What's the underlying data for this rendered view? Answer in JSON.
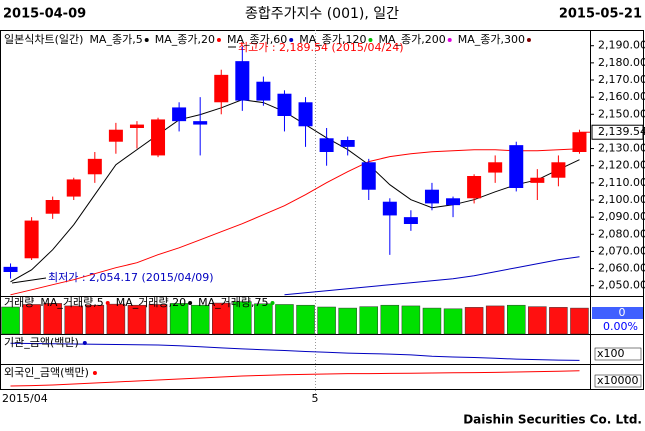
{
  "header": {
    "start_date": "2015-04-09",
    "title": "종합주가지수 (001), 일간",
    "end_date": "2015-05-21"
  },
  "footer": "Daishin Securities Co. Ltd.",
  "x_labels": [
    "2015/04",
    "5"
  ],
  "chart_data": [
    {
      "type": "candlestick",
      "legend_title": "일본식차트(일간)",
      "up_color": "#ff0000",
      "down_color": "#0000ff",
      "open": [
        2061,
        2066,
        2092,
        2102,
        2115,
        2134,
        2142,
        2126,
        2154,
        2146,
        2157,
        2181,
        2169,
        2162,
        2157,
        2136,
        2135,
        2122,
        2099,
        2090,
        2106,
        2101,
        2101,
        2116,
        2132,
        2110,
        2113,
        2128
      ],
      "high": [
        2063,
        2090,
        2102,
        2113,
        2128,
        2145,
        2146,
        2148,
        2157,
        2160,
        2176,
        2189.54,
        2172,
        2164,
        2160,
        2142,
        2137,
        2124,
        2101,
        2094,
        2110,
        2102,
        2115,
        2126,
        2134,
        2118,
        2126,
        2141
      ],
      "low": [
        2054.17,
        2065,
        2089,
        2100,
        2110,
        2127,
        2130,
        2125,
        2140,
        2126,
        2150,
        2152,
        2155,
        2140,
        2131,
        2120,
        2126,
        2100,
        2068,
        2082,
        2094,
        2090,
        2098,
        2110,
        2105,
        2100,
        2108,
        2127
      ],
      "close": [
        2058,
        2088,
        2100,
        2112,
        2124,
        2141,
        2144,
        2147,
        2146,
        2144,
        2173,
        2158,
        2158,
        2149,
        2143,
        2128,
        2131,
        2106,
        2091,
        2086,
        2098,
        2097,
        2114,
        2122,
        2107,
        2113,
        2122,
        2139.54
      ],
      "series": [
        {
          "name": "MA_종가,5",
          "color": "#000000",
          "values": [
            2052.3,
            2059.3,
            2071,
            2085.6,
            2103.1,
            2120.6,
            2129.4,
            2138.1,
            2146.8,
            2149.8,
            2153.8,
            2158.5,
            2156.8,
            2151.5,
            2143.9,
            2136.3,
            2129.4,
            2120.6,
            2108.9,
            2100.2,
            2095.5,
            2097.2,
            2100.2,
            2104.8,
            2108.9,
            2111.8,
            2117.7,
            2123.5
          ]
        },
        {
          "name": "MA_종가,20",
          "color": "#ff0000",
          "values": [
            2044.7,
            2047.6,
            2050.6,
            2053.5,
            2057,
            2060.5,
            2063.4,
            2068.1,
            2072.1,
            2076.8,
            2081.5,
            2086.2,
            2091.4,
            2096.7,
            2103.1,
            2110.1,
            2116.5,
            2122.4,
            2125.3,
            2127,
            2128.2,
            2128.7,
            2129.3,
            2129.3,
            2128.7,
            2128.7,
            2129.3,
            2129.9
          ]
        },
        {
          "name": "MA_종가,60",
          "color": "#0000c0",
          "values": [
            null,
            null,
            null,
            null,
            null,
            null,
            null,
            null,
            null,
            null,
            null,
            null,
            null,
            2044.7,
            2045.9,
            2047.1,
            2048.2,
            2049.4,
            2050.6,
            2051.7,
            2052.9,
            2054.1,
            2055.8,
            2058.2,
            2060.5,
            2062.8,
            2065.2,
            2066.9
          ]
        },
        {
          "name": "MA_종가,120",
          "color": "#00c000",
          "values": [
            null,
            null,
            null,
            null,
            null,
            null,
            null,
            null,
            null,
            null,
            null,
            null,
            null,
            null,
            null,
            null,
            null,
            null,
            null,
            null,
            null,
            null,
            null,
            null,
            null,
            null,
            null,
            null
          ]
        },
        {
          "name": "MA_종가,200",
          "color": "#e000e0",
          "values": [
            null,
            null,
            null,
            null,
            null,
            null,
            null,
            null,
            null,
            null,
            null,
            null,
            null,
            null,
            null,
            null,
            null,
            null,
            null,
            null,
            null,
            null,
            null,
            null,
            null,
            null,
            null,
            null
          ]
        },
        {
          "name": "MA_종가,300",
          "color": "#800000",
          "values": [
            null,
            null,
            null,
            null,
            null,
            null,
            null,
            null,
            null,
            null,
            null,
            null,
            null,
            null,
            null,
            null,
            null,
            null,
            null,
            null,
            null,
            null,
            null,
            null,
            null,
            null,
            null,
            null
          ]
        }
      ],
      "annotations": [
        "최고가 : 2,189.54 (2015/04/24)",
        "최저가 : 2,054.17 (2015/04/09)"
      ],
      "last_label": "2,139.54",
      "ylim": [
        2044,
        2198
      ],
      "yticks": [
        {
          "value": 2050,
          "label": "2,050.00"
        },
        {
          "value": 2060,
          "label": "2,060.00"
        },
        {
          "value": 2070,
          "label": "2,070.00"
        },
        {
          "value": 2080,
          "label": "2,080.00"
        },
        {
          "value": 2090,
          "label": "2,090.00"
        },
        {
          "value": 2100,
          "label": "2,100.00"
        },
        {
          "value": 2110,
          "label": "2,110.00"
        },
        {
          "value": 2120,
          "label": "2,120.00"
        },
        {
          "value": 2130,
          "label": "2,130.00"
        },
        {
          "value": 2150,
          "label": "2,150.00"
        },
        {
          "value": 2160,
          "label": "2,160.00"
        },
        {
          "value": 2170,
          "label": "2,170.00"
        },
        {
          "value": 2180,
          "label": "2,180.00"
        },
        {
          "value": 2190,
          "label": "2,190.00"
        }
      ]
    },
    {
      "type": "bar",
      "legend_title": "거래량",
      "values": [
        75,
        82,
        85,
        78,
        80,
        83,
        80,
        82,
        85,
        80,
        86,
        90,
        84,
        82,
        80,
        75,
        72,
        76,
        80,
        78,
        72,
        70,
        74,
        78,
        80,
        76,
        74,
        72
      ],
      "colors": [
        "#00e000",
        "#ff1010",
        "#ff1010",
        "#ff1010",
        "#ff1010",
        "#ff1010",
        "#ff1010",
        "#ff1010",
        "#00e000",
        "#00e000",
        "#ff1010",
        "#00e000",
        "#00e000",
        "#00e000",
        "#00e000",
        "#00e000",
        "#00e000",
        "#00e000",
        "#00e000",
        "#00e000",
        "#00e000",
        "#00e000",
        "#ff1010",
        "#ff1010",
        "#00e000",
        "#ff1010",
        "#ff1010",
        "#ff1010"
      ],
      "series": [
        {
          "name": "MA_거래량,5",
          "color": "#ff0000",
          "values": [
            null,
            null,
            null,
            null,
            null,
            null,
            null,
            null,
            null,
            null,
            null,
            null,
            null,
            null,
            null,
            null,
            null,
            null,
            null,
            null,
            null,
            null,
            null,
            null,
            null,
            null,
            null,
            null
          ]
        },
        {
          "name": "MA_거래량,20",
          "color": "#000000",
          "values": [
            null,
            null,
            null,
            null,
            null,
            null,
            null,
            null,
            null,
            null,
            null,
            null,
            null,
            null,
            null,
            null,
            null,
            null,
            null,
            null,
            null,
            null,
            null,
            null,
            null,
            null,
            null,
            null
          ]
        },
        {
          "name": "MA_거래량,75",
          "color": "#00c000",
          "values": [
            null,
            null,
            null,
            null,
            null,
            null,
            null,
            null,
            null,
            null,
            null,
            null,
            null,
            null,
            null,
            null,
            null,
            null,
            null,
            null,
            null,
            null,
            null,
            null,
            null,
            null,
            null,
            null
          ]
        }
      ],
      "value_box": "0",
      "change": "0.00%",
      "ylim": [
        0,
        100
      ]
    },
    {
      "type": "line",
      "legend_title": "기관_금액(백만)",
      "scale_label": "x100",
      "series": [
        {
          "name": null,
          "color": "#0000c0",
          "values": [
            80,
            79,
            78,
            77,
            76,
            75,
            74,
            73,
            70,
            66,
            62,
            58,
            55,
            52,
            48,
            45,
            42,
            40,
            38,
            35,
            30,
            27,
            25,
            22,
            19,
            17,
            15,
            14
          ]
        }
      ],
      "ylim": [
        0,
        100
      ]
    },
    {
      "type": "line",
      "legend_title": "외국인_금액(백만)",
      "scale_label": "x10000",
      "series": [
        {
          "name": null,
          "color": "#ff0000",
          "values": [
            10,
            12,
            15,
            20,
            25,
            30,
            35,
            40,
            45,
            50,
            55,
            60,
            63,
            66,
            68,
            70,
            72,
            72,
            73,
            74,
            75,
            76,
            77,
            78,
            80,
            82,
            84,
            86
          ]
        }
      ],
      "ylim": [
        0,
        100
      ]
    }
  ]
}
